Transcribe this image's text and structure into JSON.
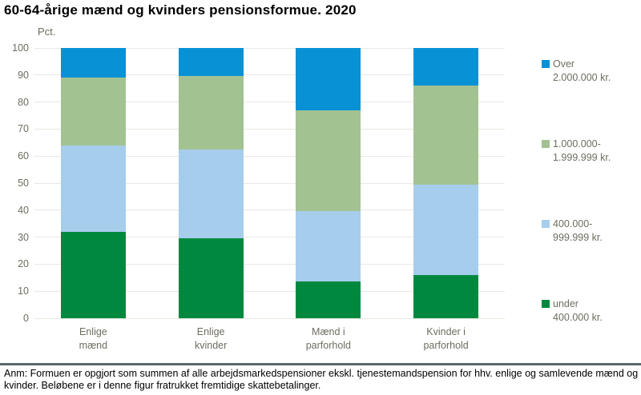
{
  "title": "60-64-årige mænd og kvinders pensionsformue. 2020",
  "note": "Anm: Formuen er opgjort som summen af alle arbejdsmarkedspensioner ekskl. tjenestemandspension for hhv. enlige og samlevende mænd og kvinder. Beløbene er i denne figur fratrukket fremtidige skattebetalinger.",
  "chart_data": {
    "type": "bar",
    "stacked": true,
    "title": "60-64-årige mænd og kvinders pensionsformue. 2020",
    "unit_label": "Pct.",
    "xlabel": "",
    "ylabel": "Pct.",
    "ylim": [
      0,
      100
    ],
    "ytick_step": 10,
    "grid": true,
    "legend_position": "right",
    "categories": [
      "Enlige\nmænd",
      "Enlige\nkvinder",
      "Mænd i\nparforhold",
      "Kvinder i\nparforhold"
    ],
    "series": [
      {
        "name": "under 400.000 kr.",
        "legend_label": "under\n400.000 kr.",
        "color": "#00893E",
        "values": [
          32,
          29.5,
          13.5,
          16
        ]
      },
      {
        "name": "400.000-999.999 kr.",
        "legend_label": "400.000-\n999.999 kr.",
        "color": "#A7CDEC",
        "values": [
          32,
          33,
          26,
          33.5
        ]
      },
      {
        "name": "1.000.000-1.999.999 kr.",
        "legend_label": "1.000.000-\n1.999.999 kr.",
        "color": "#A3C292",
        "values": [
          25,
          27,
          37.5,
          36.5
        ]
      },
      {
        "name": "Over 2.000.000 kr.",
        "legend_label": "Over\n2.000.000 kr.",
        "color": "#0991D5",
        "values": [
          11,
          10.5,
          23,
          14
        ]
      }
    ]
  },
  "colors": {
    "axis_text": "#6e6d60",
    "gridline": "#e9e8e0",
    "divider": "#5a686e",
    "title_text": "#000000",
    "note_text": "#000000",
    "background": "#ffffff"
  }
}
